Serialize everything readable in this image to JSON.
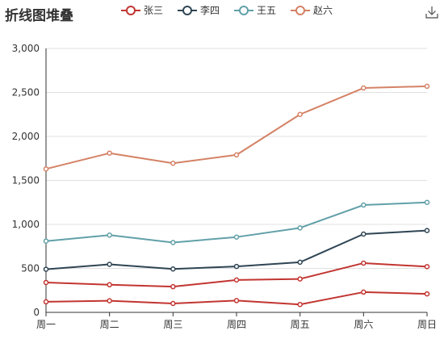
{
  "title": "折线图堆叠",
  "toolbox": {
    "icon": "download-icon"
  },
  "chart_data": {
    "type": "line",
    "stacked": true,
    "categories": [
      "周一",
      "周二",
      "周三",
      "周四",
      "周五",
      "周六",
      "周日"
    ],
    "ylim": [
      0,
      3000
    ],
    "yticks": [
      0,
      500,
      1000,
      1500,
      2000,
      2500,
      3000
    ],
    "ytick_labels": [
      "0",
      "500",
      "1,000",
      "1,500",
      "2,000",
      "2,500",
      "3,000"
    ],
    "grid": true,
    "legend_position": "top",
    "series": [
      {
        "name": "",
        "color": "#c23531",
        "values": [
          120,
          132,
          101,
          134,
          90,
          230,
          210
        ]
      },
      {
        "name": "张三",
        "color": "#c23531",
        "values": [
          220,
          182,
          191,
          234,
          290,
          330,
          310
        ]
      },
      {
        "name": "李四",
        "color": "#2f4554",
        "values": [
          150,
          232,
          201,
          154,
          190,
          330,
          410
        ]
      },
      {
        "name": "王五",
        "color": "#61a0a8",
        "values": [
          320,
          332,
          301,
          334,
          390,
          330,
          320
        ]
      },
      {
        "name": "赵六",
        "color": "#d48265",
        "values": [
          820,
          932,
          901,
          934,
          1290,
          1330,
          1320
        ]
      }
    ]
  }
}
